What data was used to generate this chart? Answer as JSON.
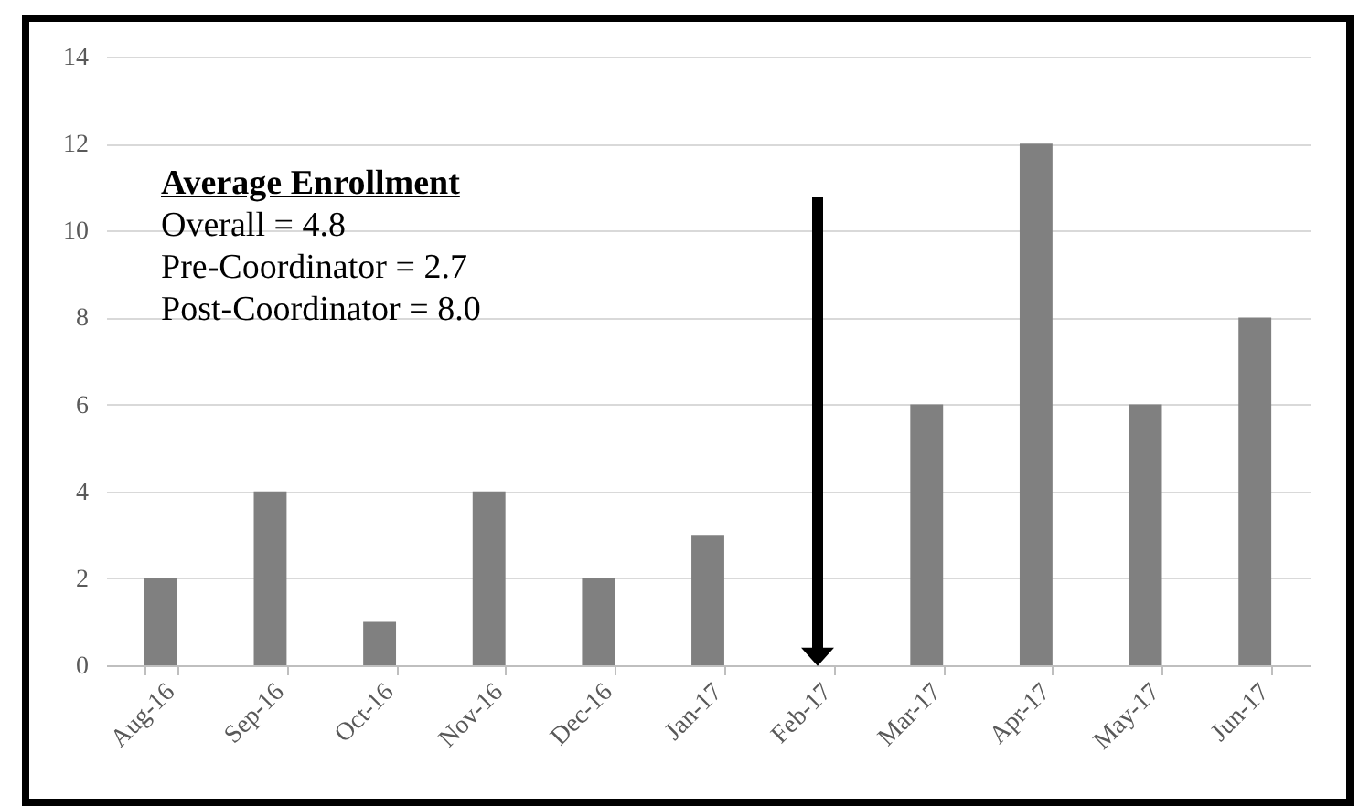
{
  "chart_data": {
    "type": "bar",
    "categories": [
      "Aug-16",
      "Sep-16",
      "Oct-16",
      "Nov-16",
      "Dec-16",
      "Jan-17",
      "Feb-17",
      "Mar-17",
      "Apr-17",
      "May-17",
      "Jun-17"
    ],
    "values": [
      2,
      4,
      1,
      4,
      2,
      3,
      null,
      6,
      12,
      6,
      8
    ],
    "color": "#808080",
    "ylim": [
      0,
      14
    ],
    "yticks": [
      0,
      2,
      4,
      6,
      8,
      10,
      12,
      14
    ],
    "grid": "y",
    "annotations": [
      "Average Enrollment",
      "Overall = 4.8",
      "Pre-Coordinator = 2.7",
      "Post-Coordinator = 8.0"
    ]
  }
}
